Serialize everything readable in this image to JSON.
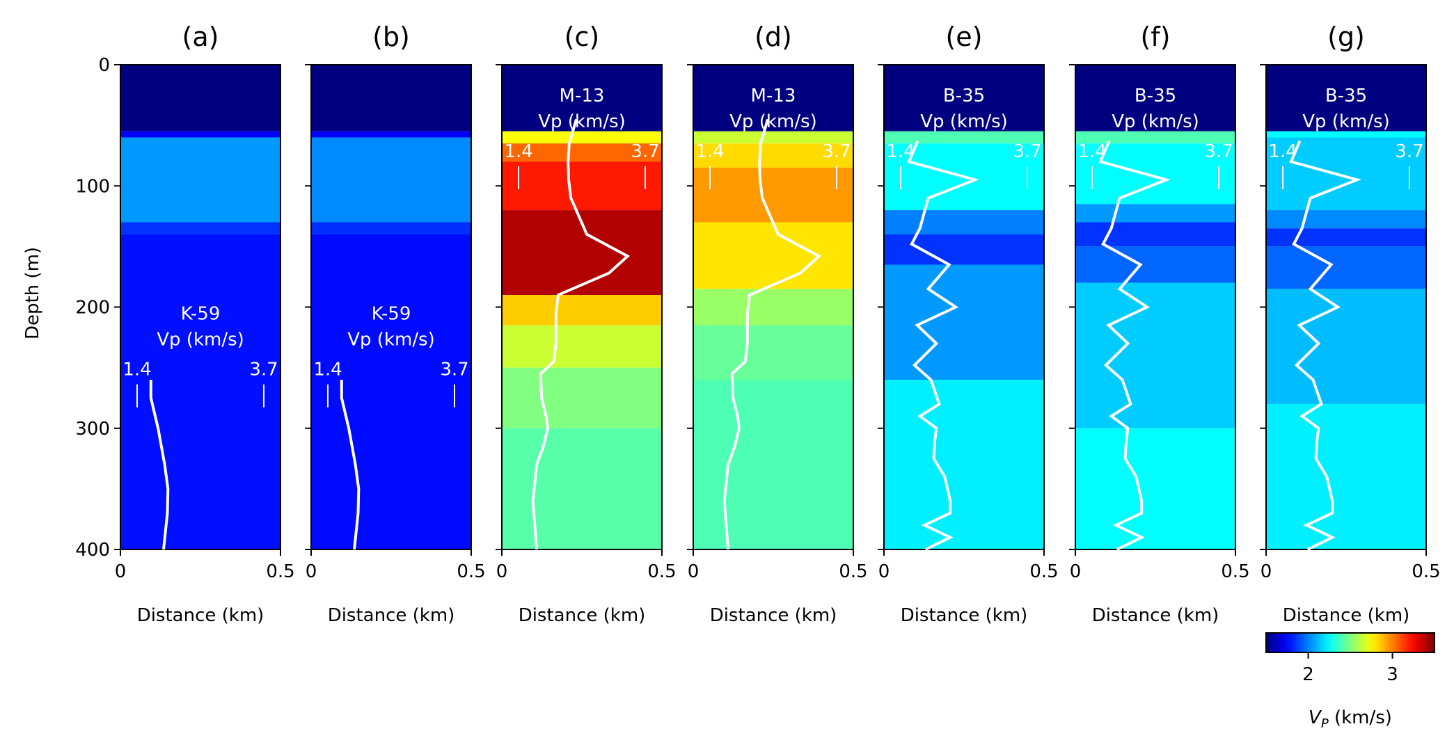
{
  "chart_data": {
    "type": "heatmap",
    "shared": {
      "ylabel": "Depth (m)",
      "xlabel": "Distance (km)",
      "y_ticks": [
        "0",
        "100",
        "200",
        "300",
        "400"
      ],
      "y_tick_values": [
        0,
        100,
        200,
        300,
        400
      ],
      "x_ticks": [
        "0",
        "0.5"
      ],
      "x_tick_values": [
        0,
        0.5
      ],
      "xlim": [
        0,
        0.5
      ],
      "ylim": [
        0,
        400
      ],
      "well_scale": {
        "min_label": "1.4",
        "max_label": "3.7",
        "min": 1.4,
        "max": 3.7
      }
    },
    "colorbar": {
      "label": "V_P (km/s)",
      "label_main": "V",
      "label_sub": "P",
      "label_unit": " (km/s)",
      "ticks": [
        "2",
        "3"
      ],
      "tick_values": [
        2,
        3
      ],
      "range": [
        1.5,
        3.5
      ],
      "colormap": "jet"
    },
    "panels": [
      {
        "title": "(a)",
        "well": "K-59",
        "well_unit": "Vp (km/s)",
        "well_label_depth": 215,
        "cell_depths": [
          0,
          55,
          60,
          130,
          140,
          400
        ],
        "cell_vp": [
          1.5,
          1.75,
          2.05,
          1.85,
          1.78
        ],
        "vp_log": {
          "depth": [
            260,
            275,
            300,
            330,
            350,
            370,
            400
          ],
          "vp": [
            1.65,
            1.65,
            1.78,
            1.9,
            1.96,
            1.95,
            1.88
          ]
        }
      },
      {
        "title": "(b)",
        "well": "K-59",
        "well_unit": "Vp (km/s)",
        "well_label_depth": 215,
        "cell_depths": [
          0,
          55,
          60,
          130,
          140,
          400
        ],
        "cell_vp": [
          1.5,
          1.75,
          2.02,
          1.84,
          1.77
        ],
        "vp_log": {
          "depth": [
            260,
            275,
            300,
            330,
            350,
            370,
            400
          ],
          "vp": [
            1.65,
            1.65,
            1.78,
            1.9,
            1.96,
            1.95,
            1.88
          ]
        }
      },
      {
        "title": "(c)",
        "well": "M-13",
        "well_unit": "Vp (km/s)",
        "well_label_depth": 35,
        "cell_depths": [
          0,
          55,
          65,
          80,
          120,
          190,
          215,
          250,
          300,
          400
        ],
        "cell_vp": [
          1.5,
          2.75,
          3.05,
          3.2,
          3.4,
          2.85,
          2.65,
          2.5,
          2.42
        ],
        "vp_log": {
          "depth": [
            45,
            65,
            80,
            95,
            110,
            140,
            158,
            172,
            190,
            205,
            230,
            245,
            255,
            275,
            290,
            300,
            315,
            330,
            360,
            400
          ],
          "vp": [
            2.45,
            2.32,
            2.3,
            2.31,
            2.35,
            2.64,
            3.38,
            3.04,
            2.12,
            2.08,
            2.08,
            2.04,
            1.8,
            1.82,
            1.9,
            1.93,
            1.85,
            1.73,
            1.66,
            1.73
          ]
        }
      },
      {
        "title": "(d)",
        "well": "M-13",
        "well_unit": "Vp (km/s)",
        "well_label_depth": 35,
        "cell_depths": [
          0,
          55,
          65,
          85,
          130,
          185,
          215,
          260,
          400
        ],
        "cell_vp": [
          1.5,
          2.65,
          2.82,
          2.95,
          2.8,
          2.55,
          2.45,
          2.4
        ],
        "vp_log": {
          "depth": [
            45,
            65,
            80,
            95,
            110,
            140,
            158,
            172,
            190,
            205,
            230,
            245,
            255,
            275,
            290,
            300,
            315,
            330,
            360,
            400
          ],
          "vp": [
            2.45,
            2.32,
            2.3,
            2.31,
            2.35,
            2.64,
            3.38,
            3.04,
            2.12,
            2.08,
            2.08,
            2.04,
            1.8,
            1.82,
            1.9,
            1.93,
            1.85,
            1.73,
            1.66,
            1.73
          ]
        }
      },
      {
        "title": "(e)",
        "well": "B-35",
        "well_unit": "Vp (km/s)",
        "well_label_depth": 35,
        "cell_depths": [
          0,
          55,
          65,
          120,
          140,
          165,
          260,
          400
        ],
        "cell_vp": [
          1.5,
          2.4,
          2.25,
          2.0,
          1.85,
          2.05,
          2.22
        ],
        "vp_log": {
          "depth": [
            63,
            80,
            95,
            110,
            135,
            148,
            165,
            185,
            200,
            215,
            230,
            248,
            260,
            280,
            290,
            300,
            310,
            325,
            340,
            360,
            370,
            380,
            390,
            400
          ],
          "vp": [
            1.71,
            1.55,
            2.75,
            1.9,
            1.75,
            1.6,
            2.28,
            1.9,
            2.4,
            1.7,
            2.05,
            1.65,
            1.95,
            2.1,
            1.75,
            2.05,
            2.02,
            2.0,
            2.2,
            2.3,
            2.3,
            1.83,
            2.3,
            1.85
          ]
        }
      },
      {
        "title": "(f)",
        "well": "B-35",
        "well_unit": "Vp (km/s)",
        "well_label_depth": 35,
        "cell_depths": [
          0,
          55,
          65,
          115,
          130,
          150,
          180,
          300,
          400
        ],
        "cell_vp": [
          1.5,
          2.4,
          2.25,
          2.05,
          1.85,
          1.95,
          2.15,
          2.25
        ],
        "vp_log": {
          "depth": [
            63,
            80,
            95,
            110,
            135,
            148,
            165,
            185,
            200,
            215,
            230,
            248,
            260,
            280,
            290,
            300,
            310,
            325,
            340,
            360,
            370,
            380,
            390,
            400
          ],
          "vp": [
            1.71,
            1.55,
            2.75,
            1.9,
            1.75,
            1.6,
            2.28,
            1.9,
            2.4,
            1.7,
            2.05,
            1.65,
            1.95,
            2.1,
            1.75,
            2.05,
            2.02,
            2.0,
            2.2,
            2.3,
            2.3,
            1.83,
            2.3,
            1.85
          ]
        }
      },
      {
        "title": "(g)",
        "well": "B-35",
        "well_unit": "Vp (km/s)",
        "well_label_depth": 35,
        "cell_depths": [
          0,
          55,
          60,
          120,
          135,
          150,
          185,
          280,
          400
        ],
        "cell_vp": [
          1.5,
          2.25,
          2.15,
          2.02,
          1.85,
          1.95,
          2.12,
          2.22
        ],
        "vp_log": {
          "depth": [
            63,
            80,
            95,
            110,
            135,
            148,
            165,
            185,
            200,
            215,
            230,
            248,
            260,
            280,
            290,
            300,
            310,
            325,
            340,
            360,
            370,
            380,
            390,
            400
          ],
          "vp": [
            1.71,
            1.55,
            2.75,
            1.9,
            1.75,
            1.6,
            2.28,
            1.9,
            2.4,
            1.7,
            2.05,
            1.65,
            1.95,
            2.1,
            1.75,
            2.05,
            2.02,
            2.0,
            2.2,
            2.3,
            2.3,
            1.83,
            2.3,
            1.85
          ]
        }
      }
    ]
  }
}
